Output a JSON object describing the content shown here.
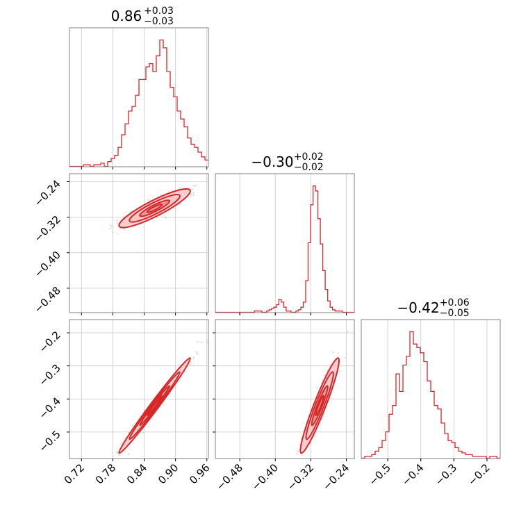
{
  "colors": {
    "series": "#d62728",
    "scatter": "#f2a3a3",
    "fill_light": "#f6c9c9",
    "fill_mid": "#ea8f8f",
    "grid": "#c8c8c8",
    "spine": "#808080"
  },
  "chart_data": {
    "type": "corner",
    "grid": true,
    "parameters": [
      {
        "index": 0,
        "title": {
          "main": "0.86",
          "sup": "+0.03",
          "sub": "−0.03"
        },
        "range": [
          0.697,
          0.963
        ],
        "ticks": [
          0.72,
          0.78,
          0.84,
          0.9,
          0.96
        ],
        "tick_labels": [
          "0.72",
          "0.78",
          "0.84",
          "0.90",
          "0.96"
        ],
        "histogram": {
          "bin_width": 0.00665,
          "bin_start": 0.697,
          "counts": [
            0,
            0,
            0,
            0,
            1,
            1,
            0,
            1,
            1,
            2,
            0,
            3,
            5,
            7,
            12,
            20,
            27,
            35,
            38,
            45,
            55,
            55,
            63,
            65,
            60,
            70,
            80,
            75,
            60,
            50,
            44,
            35,
            30,
            25,
            18,
            14,
            12,
            9,
            6,
            4,
            1,
            1,
            0,
            0,
            0,
            0
          ]
        }
      },
      {
        "index": 1,
        "title": {
          "main": "−0.30",
          "sup": "+0.02",
          "sub": "−0.02"
        },
        "range": [
          -0.535,
          -0.222
        ],
        "ticks": [
          -0.48,
          -0.4,
          -0.32,
          -0.24
        ],
        "tick_labels": [
          "−0.48",
          "−0.40",
          "−0.32",
          "−0.24"
        ],
        "histogram": {
          "bin_width": 0.0055,
          "bin_start": -0.535,
          "counts": [
            0,
            0,
            0,
            0,
            0,
            0,
            0,
            0,
            0,
            0,
            0,
            0,
            0,
            0,
            0,
            0,
            1,
            1,
            1,
            0,
            0,
            1,
            2,
            3,
            4,
            6,
            10,
            8,
            4,
            1,
            1,
            0,
            0,
            1,
            2,
            4,
            8,
            25,
            55,
            85,
            100,
            96,
            74,
            54,
            33,
            18,
            9,
            4,
            2,
            1,
            1,
            1,
            0,
            0,
            0,
            0,
            0,
            0
          ]
        }
      },
      {
        "index": 2,
        "title": {
          "main": "−0.42",
          "sup": "+0.06",
          "sub": "−0.05"
        },
        "range": [
          -0.58,
          -0.16
        ],
        "ticks": [
          -0.5,
          -0.4,
          -0.3,
          -0.2
        ],
        "tick_labels": [
          "−0.5",
          "−0.4",
          "−0.3",
          "−0.2"
        ],
        "histogram": {
          "bin_width": 0.0105,
          "bin_start": -0.58,
          "counts": [
            0,
            1,
            1,
            2,
            4,
            6,
            10,
            15,
            25,
            30,
            48,
            38,
            53,
            58,
            72,
            65,
            63,
            60,
            55,
            44,
            38,
            30,
            28,
            20,
            14,
            10,
            9,
            6,
            4,
            3,
            2,
            2,
            1,
            1,
            1,
            1,
            0,
            1,
            1,
            0
          ]
        }
      }
    ],
    "pairs": [
      {
        "x_param": 0,
        "y_param": 1,
        "mean": [
          0.86,
          -0.3
        ],
        "cov": [
          [
            0.00081,
            0.00046
          ],
          [
            0.00046,
            0.00033
          ]
        ]
      },
      {
        "x_param": 0,
        "y_param": 2,
        "mean": [
          0.86,
          -0.42
        ],
        "cov": [
          [
            0.00081,
            0.00169
          ],
          [
            0.00169,
            0.0036
          ]
        ]
      },
      {
        "x_param": 1,
        "y_param": 2,
        "mean": [
          -0.3,
          -0.42
        ],
        "cov": [
          [
            0.00033,
            0.00103
          ],
          [
            0.00103,
            0.0036
          ]
        ]
      }
    ]
  }
}
